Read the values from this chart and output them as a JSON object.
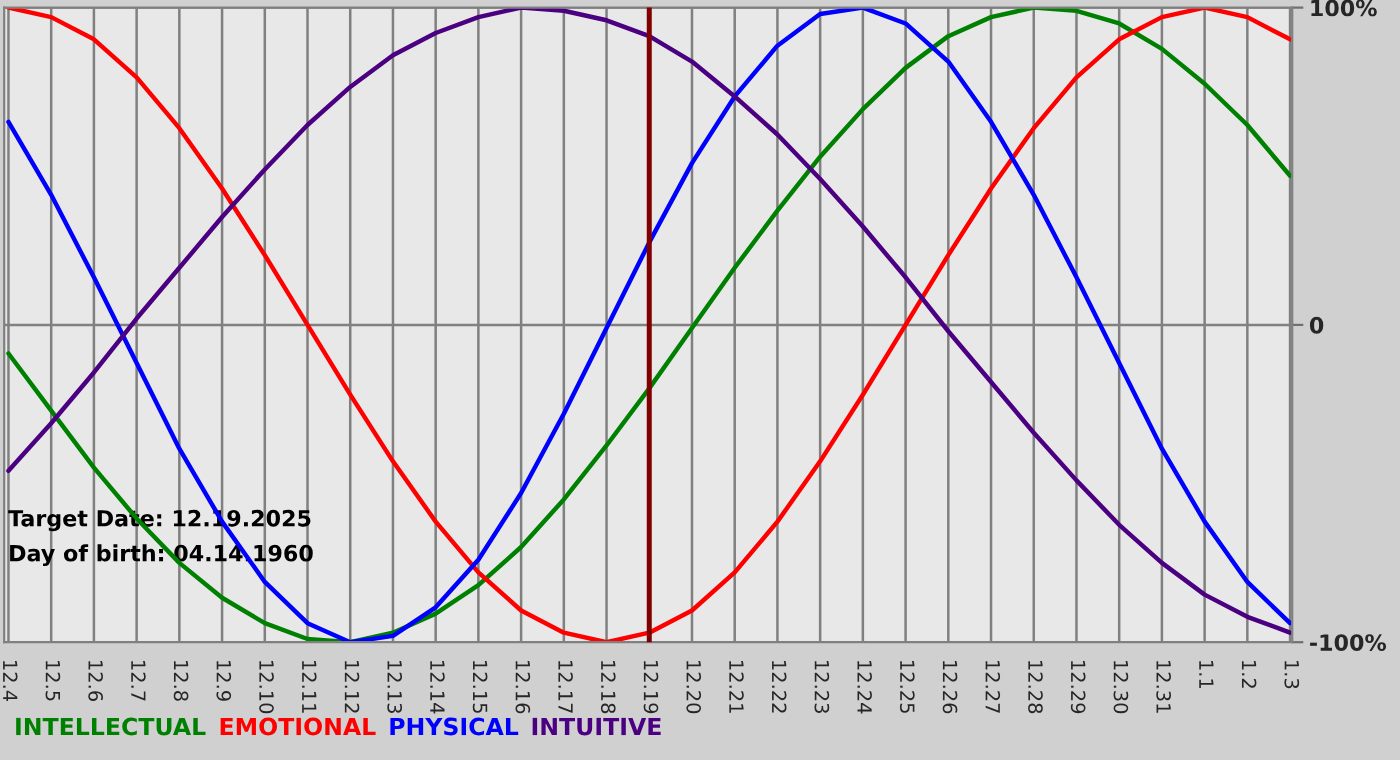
{
  "chart_data": {
    "type": "line",
    "categories": [
      "12.4",
      "12.5",
      "12.6",
      "12.7",
      "12.8",
      "12.9",
      "12.10",
      "12.11",
      "12.12",
      "12.13",
      "12.14",
      "12.15",
      "12.16",
      "12.17",
      "12.18",
      "12.19",
      "12.20",
      "12.21",
      "12.22",
      "12.23",
      "12.24",
      "12.25",
      "12.26",
      "12.27",
      "12.28",
      "12.29",
      "12.30",
      "12.31",
      "1.1",
      "1.2",
      "1.3"
    ],
    "series": [
      {
        "name": "INTELLECTUAL",
        "color": "#008000",
        "values": [
          -9,
          -27,
          -45,
          -61,
          -75,
          -86,
          -94,
          -99,
          -100,
          -97,
          -91,
          -82,
          -70,
          -55,
          -38,
          -20,
          -1,
          18,
          36,
          53,
          68,
          81,
          91,
          97,
          100,
          99,
          95,
          87,
          76,
          63,
          47
        ]
      },
      {
        "name": "EMOTIONAL",
        "color": "#ff0000",
        "values": [
          100,
          97,
          90,
          78,
          62,
          43,
          22,
          0,
          -22,
          -43,
          -62,
          -78,
          -90,
          -97,
          -100,
          -97,
          -90,
          -78,
          -62,
          -43,
          -22,
          0,
          22,
          43,
          62,
          78,
          90,
          97,
          100,
          97,
          90
        ]
      },
      {
        "name": "PHYSICAL",
        "color": "#0000ff",
        "values": [
          64,
          41,
          15,
          -12,
          -39,
          -62,
          -81,
          -94,
          -100,
          -98,
          -89,
          -74,
          -53,
          -28,
          -1,
          26,
          51,
          72,
          88,
          98,
          100,
          95,
          83,
          64,
          41,
          15,
          -12,
          -39,
          -62,
          -81,
          -94
        ]
      },
      {
        "name": "INTUITIVE",
        "color": "#4b0082",
        "values": [
          -46,
          -31,
          -15,
          2,
          18,
          34,
          49,
          63,
          75,
          85,
          92,
          97,
          100,
          99,
          96,
          91,
          83,
          72,
          60,
          46,
          31,
          15,
          -2,
          -18,
          -34,
          -49,
          -63,
          -75,
          -85,
          -92,
          -97
        ]
      }
    ],
    "ylim": [
      -100,
      100
    ],
    "yticks": [
      {
        "value": 100,
        "label": "100%"
      },
      0,
      {
        "value": -100,
        "label": "-100%"
      }
    ],
    "ref_lines": [
      {
        "axis": "x",
        "value": "12.19",
        "color": "#800000"
      }
    ],
    "annotations": [
      "Target Date: 12.19.2025",
      "Day of birth: 04.14.1960"
    ],
    "grid": true
  }
}
